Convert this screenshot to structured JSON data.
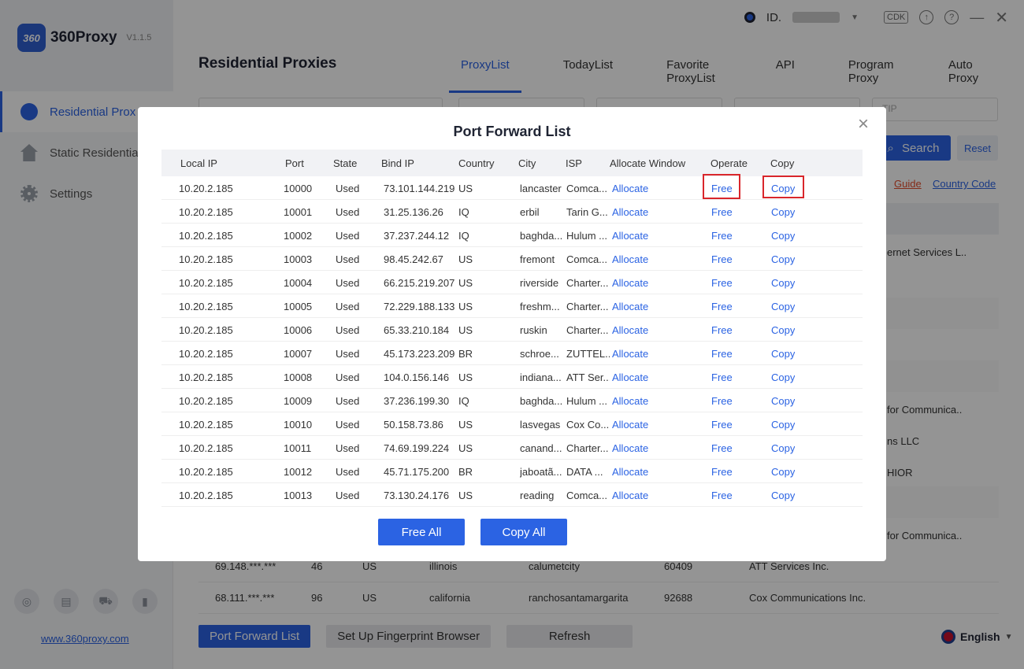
{
  "app": {
    "logo_mark": "360",
    "name": "360Proxy",
    "version": "V1.1.5",
    "id_label": "ID.",
    "cdk_label": "CDK",
    "website": "www.360proxy.com",
    "language": "English"
  },
  "sidebar": {
    "items": [
      {
        "label": "Residential Proxies",
        "icon": "globe-icon",
        "active": true
      },
      {
        "label": "Static Residential Proxies",
        "icon": "home-icon",
        "active": false
      },
      {
        "label": "Settings",
        "icon": "gear-icon",
        "active": false
      }
    ]
  },
  "main": {
    "title": "Residential Proxies",
    "tabs": [
      "ProxyList",
      "TodayList",
      "Favorite ProxyList",
      "API",
      "Program Proxy",
      "Auto Proxy"
    ],
    "active_tab": "ProxyList",
    "filter_select_value": "TIP",
    "search_label": "Search",
    "reset_label": "Reset",
    "guide_label": "Guide",
    "country_code_label": "Country Code",
    "partial_right_texts": [
      "ernet Services L..",
      "for Communica..",
      "ns LLC",
      "HIOR",
      "for Communica.."
    ],
    "visible_rows": [
      {
        "ip": "69.148.***.***",
        "num": "46",
        "country": "US",
        "state": "illinois",
        "city": "calumetcity",
        "zip": "60409",
        "isp": "ATT Services Inc."
      },
      {
        "ip": "68.111.***.***",
        "num": "96",
        "country": "US",
        "state": "california",
        "city": "ranchosantamargarita",
        "zip": "92688",
        "isp": "Cox Communications Inc."
      }
    ],
    "bottom_buttons": {
      "port_forward": "Port Forward List",
      "fingerprint": "Set Up Fingerprint Browser",
      "refresh": "Refresh"
    }
  },
  "modal": {
    "title": "Port Forward List",
    "close_symbol": "×",
    "headers": [
      "Local IP",
      "Port",
      "State",
      "Bind IP",
      "Country",
      "City",
      "ISP",
      "Allocate Window",
      "Operate",
      "Copy"
    ],
    "rows": [
      {
        "local_ip": "10.20.2.185",
        "port": "10000",
        "state": "Used",
        "bind_ip": "73.101.144.219",
        "country": "US",
        "city": "lancaster",
        "isp": "Comca...",
        "allocate": "Allocate",
        "operate": "Free",
        "copy": "Copy"
      },
      {
        "local_ip": "10.20.2.185",
        "port": "10001",
        "state": "Used",
        "bind_ip": "31.25.136.26",
        "country": "IQ",
        "city": "erbil",
        "isp": "Tarin G...",
        "allocate": "Allocate",
        "operate": "Free",
        "copy": "Copy"
      },
      {
        "local_ip": "10.20.2.185",
        "port": "10002",
        "state": "Used",
        "bind_ip": "37.237.244.12",
        "country": "IQ",
        "city": "baghda...",
        "isp": "Hulum ...",
        "allocate": "Allocate",
        "operate": "Free",
        "copy": "Copy"
      },
      {
        "local_ip": "10.20.2.185",
        "port": "10003",
        "state": "Used",
        "bind_ip": "98.45.242.67",
        "country": "US",
        "city": "fremont",
        "isp": "Comca...",
        "allocate": "Allocate",
        "operate": "Free",
        "copy": "Copy"
      },
      {
        "local_ip": "10.20.2.185",
        "port": "10004",
        "state": "Used",
        "bind_ip": "66.215.219.207",
        "country": "US",
        "city": "riverside",
        "isp": "Charter...",
        "allocate": "Allocate",
        "operate": "Free",
        "copy": "Copy"
      },
      {
        "local_ip": "10.20.2.185",
        "port": "10005",
        "state": "Used",
        "bind_ip": "72.229.188.133",
        "country": "US",
        "city": "freshm...",
        "isp": "Charter...",
        "allocate": "Allocate",
        "operate": "Free",
        "copy": "Copy"
      },
      {
        "local_ip": "10.20.2.185",
        "port": "10006",
        "state": "Used",
        "bind_ip": "65.33.210.184",
        "country": "US",
        "city": "ruskin",
        "isp": "Charter...",
        "allocate": "Allocate",
        "operate": "Free",
        "copy": "Copy"
      },
      {
        "local_ip": "10.20.2.185",
        "port": "10007",
        "state": "Used",
        "bind_ip": "45.173.223.209",
        "country": "BR",
        "city": "schroe...",
        "isp": "ZUTTEL...",
        "allocate": "Allocate",
        "operate": "Free",
        "copy": "Copy"
      },
      {
        "local_ip": "10.20.2.185",
        "port": "10008",
        "state": "Used",
        "bind_ip": "104.0.156.146",
        "country": "US",
        "city": "indiana...",
        "isp": "ATT Ser...",
        "allocate": "Allocate",
        "operate": "Free",
        "copy": "Copy"
      },
      {
        "local_ip": "10.20.2.185",
        "port": "10009",
        "state": "Used",
        "bind_ip": "37.236.199.30",
        "country": "IQ",
        "city": "baghda...",
        "isp": "Hulum ...",
        "allocate": "Allocate",
        "operate": "Free",
        "copy": "Copy"
      },
      {
        "local_ip": "10.20.2.185",
        "port": "10010",
        "state": "Used",
        "bind_ip": "50.158.73.86",
        "country": "US",
        "city": "lasvegas",
        "isp": "Cox Co...",
        "allocate": "Allocate",
        "operate": "Free",
        "copy": "Copy"
      },
      {
        "local_ip": "10.20.2.185",
        "port": "10011",
        "state": "Used",
        "bind_ip": "74.69.199.224",
        "country": "US",
        "city": "canand...",
        "isp": "Charter...",
        "allocate": "Allocate",
        "operate": "Free",
        "copy": "Copy"
      },
      {
        "local_ip": "10.20.2.185",
        "port": "10012",
        "state": "Used",
        "bind_ip": "45.71.175.200",
        "country": "BR",
        "city": "jaboatã...",
        "isp": "DATA ...",
        "allocate": "Allocate",
        "operate": "Free",
        "copy": "Copy"
      },
      {
        "local_ip": "10.20.2.185",
        "port": "10013",
        "state": "Used",
        "bind_ip": "73.130.24.176",
        "country": "US",
        "city": "reading",
        "isp": "Comca...",
        "allocate": "Allocate",
        "operate": "Free",
        "copy": "Copy"
      }
    ],
    "free_all_label": "Free All",
    "copy_all_label": "Copy All"
  },
  "colors": {
    "accent": "#2b63e3",
    "highlight_box": "#d9262b",
    "guide_link": "#e34c2b"
  }
}
